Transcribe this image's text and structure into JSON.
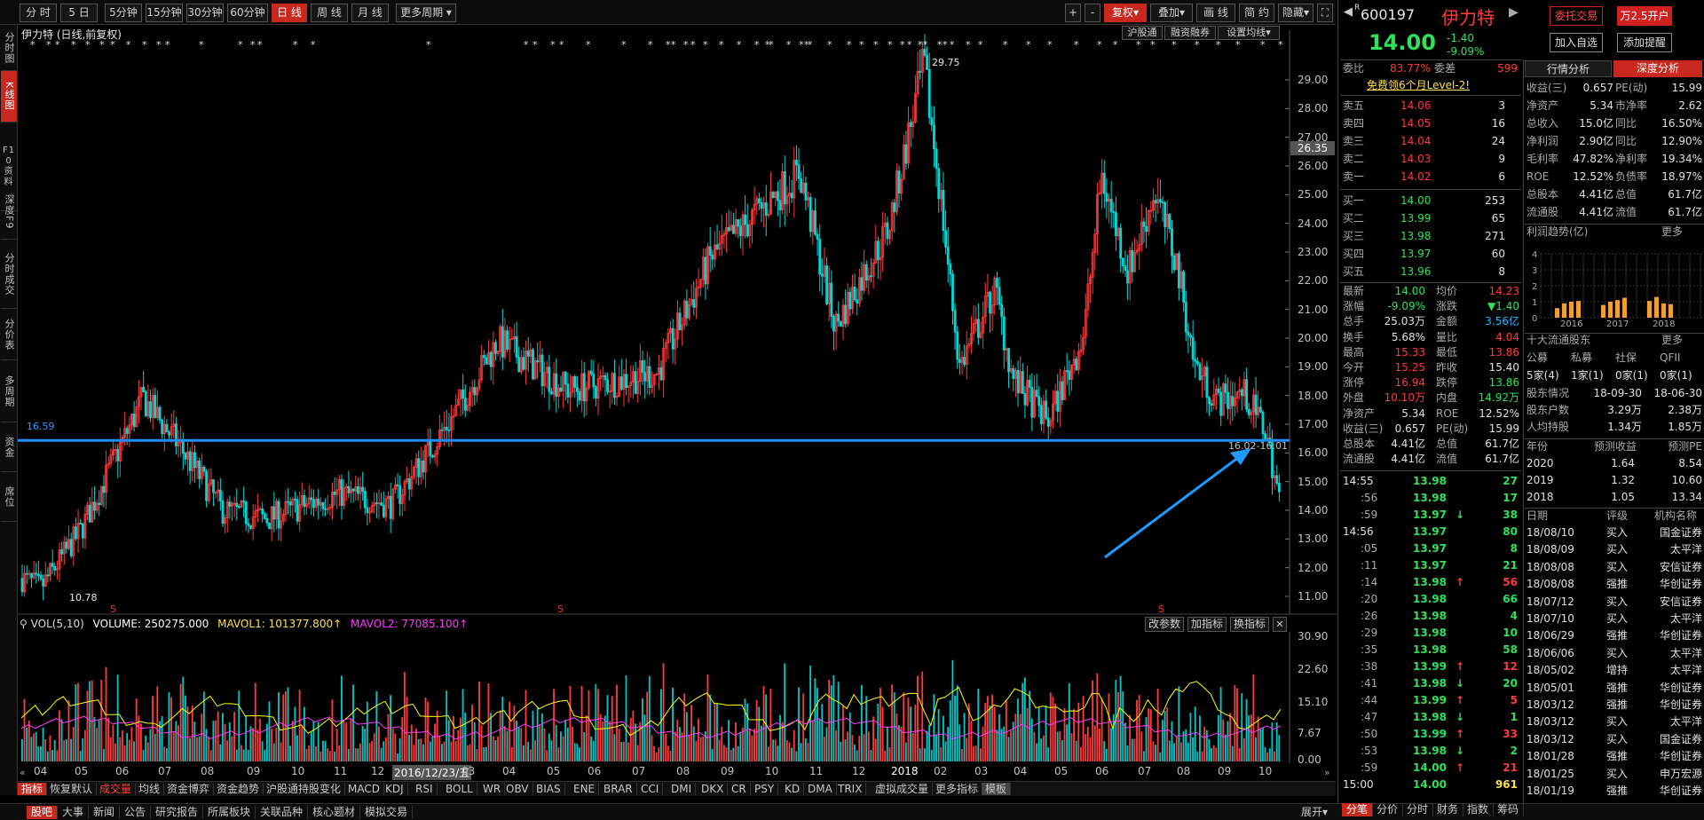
{
  "toolbar": {
    "periods": [
      "分 时",
      "5 日",
      "5分钟",
      "15分钟",
      "30分钟",
      "60分钟",
      "日 线",
      "周 线",
      "月 线",
      "更多周期"
    ],
    "active_period": "日 线",
    "right": [
      "+",
      "-",
      "复权",
      "叠加",
      "画 线",
      "简 约",
      "隐藏"
    ],
    "fq_label": "复权"
  },
  "left_tabs": [
    "分时图",
    "K线图",
    "F10资料",
    "深度F9",
    "分时成交",
    "分价表",
    "多周期",
    "资金",
    "席位"
  ],
  "chart": {
    "caption": "伊力特 (日线,前复权)",
    "top_buttons": [
      "沪股通",
      "融资融券",
      "设置均线"
    ],
    "price_axis": [
      "29.00",
      "28.00",
      "27.00",
      "26.00",
      "25.00",
      "24.00",
      "23.00",
      "22.00",
      "21.00",
      "20.00",
      "19.00",
      "18.00",
      "17.00",
      "16.00",
      "15.00",
      "14.00",
      "13.00",
      "12.00",
      "11.00"
    ],
    "price_tag": "26.35",
    "hline_label": "16.59",
    "high_label": "29.75",
    "low_label": "10.78",
    "cross_label": "16.02-16.01",
    "s_marks": [
      "S",
      "S",
      "S"
    ]
  },
  "volume": {
    "vol_label": "VOL(5,10)",
    "volume_text": "VOLUME: 250275.000",
    "mavol1_text": "MAVOL1: 101377.800",
    "mavol2_text": "MAVOL2: 77085.100",
    "buttons": [
      "改参数",
      "加指标",
      "换指标"
    ],
    "axis": [
      "30.90",
      "22.60",
      "15.10",
      "7.67",
      "0.00"
    ]
  },
  "date_axis": [
    "04",
    "05",
    "06",
    "07",
    "08",
    "09",
    "10",
    "11",
    "12",
    "2016/12/23/五",
    "03",
    "04",
    "05",
    "06",
    "07",
    "08",
    "09",
    "10",
    "11",
    "12",
    "2018",
    "02",
    "03",
    "04",
    "05",
    "06",
    "07",
    "08",
    "09",
    "10"
  ],
  "indicator_tabs": [
    "指标",
    "恢复默认",
    "成交量",
    "均线",
    "资金博弈",
    "资金趋势",
    "沪股通持股变化",
    "MACD",
    "KDJ",
    "RSI",
    "BOLL",
    "WR",
    "OBV",
    "BIAS",
    "ENE",
    "BRAR",
    "CCI",
    "DMI",
    "DKX",
    "CR",
    "PSY",
    "KD",
    "DMA",
    "TRIX",
    "虚拟成交量",
    "更多指标",
    "模板"
  ],
  "bottom_tabs": [
    "股吧",
    "大事",
    "新闻",
    "公告",
    "研究报告",
    "所属板块",
    "关联品种",
    "核心题材",
    "模拟交易"
  ],
  "expand_label": "展开",
  "right_bottom_tabs": [
    "分笔",
    "分价",
    "分时",
    "财务",
    "指数",
    "筹码"
  ],
  "stock": {
    "r_mark": "R",
    "code": "600197",
    "name": "伊力特",
    "price": "14.00",
    "change": "-1.40",
    "change_pct": "-9.09%",
    "buttons": [
      "委托交易",
      "万2.5开户",
      "加入自选",
      "添加提醒"
    ]
  },
  "order": {
    "wb_label": "委比",
    "wb_value": "83.77%",
    "wc_label": "委差",
    "wc_value": "599",
    "promo": "免费领6个月Level-2!",
    "sells": [
      [
        "卖五",
        "14.06",
        "3"
      ],
      [
        "卖四",
        "14.05",
        "16"
      ],
      [
        "卖三",
        "14.04",
        "24"
      ],
      [
        "卖二",
        "14.03",
        "9"
      ],
      [
        "卖一",
        "14.02",
        "6"
      ]
    ],
    "buys": [
      [
        "买一",
        "14.00",
        "253"
      ],
      [
        "买二",
        "13.99",
        "65"
      ],
      [
        "买三",
        "13.98",
        "271"
      ],
      [
        "买四",
        "13.97",
        "60"
      ],
      [
        "买五",
        "13.96",
        "8"
      ]
    ]
  },
  "stats": [
    [
      "最新",
      "14.00",
      "均价",
      "14.23"
    ],
    [
      "涨幅",
      "-9.09%",
      "涨跌",
      "▼1.40"
    ],
    [
      "总手",
      "25.03万",
      "金额",
      "3.56亿"
    ],
    [
      "换手",
      "5.68%",
      "量比",
      "4.04"
    ],
    [
      "最高",
      "15.33",
      "最低",
      "13.86"
    ],
    [
      "今开",
      "15.25",
      "昨收",
      "15.40"
    ],
    [
      "涨停",
      "16.94",
      "跌停",
      "13.86"
    ],
    [
      "外盘",
      "10.10万",
      "内盘",
      "14.92万"
    ],
    [
      "净资产",
      "5.34",
      "ROE",
      "12.52%"
    ],
    [
      "收益(三)",
      "0.657",
      "PE(动)",
      "15.99"
    ],
    [
      "总股本",
      "4.41亿",
      "总值",
      "61.7亿"
    ],
    [
      "流通股",
      "4.41亿",
      "流值",
      "61.7亿"
    ]
  ],
  "ticks": [
    [
      "14:55",
      "13.98",
      "27",
      ""
    ],
    [
      ":56",
      "13.98",
      "17",
      ""
    ],
    [
      ":59",
      "13.97",
      "38",
      "↓"
    ],
    [
      "14:56",
      "13.97",
      "80",
      ""
    ],
    [
      ":05",
      "13.97",
      "8",
      ""
    ],
    [
      ":11",
      "13.97",
      "21",
      ""
    ],
    [
      ":14",
      "13.98",
      "56",
      "↑"
    ],
    [
      ":20",
      "13.98",
      "66",
      ""
    ],
    [
      ":26",
      "13.98",
      "4",
      ""
    ],
    [
      ":29",
      "13.98",
      "10",
      ""
    ],
    [
      ":35",
      "13.98",
      "58",
      ""
    ],
    [
      ":38",
      "13.99",
      "12",
      "↑"
    ],
    [
      ":41",
      "13.98",
      "20",
      "↓"
    ],
    [
      ":44",
      "13.99",
      "5",
      "↑"
    ],
    [
      ":47",
      "13.98",
      "1",
      "↓"
    ],
    [
      ":50",
      "13.99",
      "33",
      "↑"
    ],
    [
      ":53",
      "13.98",
      "2",
      "↓"
    ],
    [
      ":59",
      "14.00",
      "21",
      "↑"
    ],
    [
      "15:00",
      "14.00",
      "961",
      ""
    ]
  ],
  "deep": {
    "tabs": [
      "行情分析",
      "深度分析"
    ],
    "fin": [
      [
        "收益(三)",
        "0.657",
        "PE(动)",
        "15.99"
      ],
      [
        "净资产",
        "5.34",
        "市净率",
        "2.62"
      ],
      [
        "总收入",
        "15.0亿",
        "同比",
        "16.50%"
      ],
      [
        "净利润",
        "2.90亿",
        "同比",
        "12.90%"
      ],
      [
        "毛利率",
        "47.82%",
        "净利率",
        "19.34%"
      ],
      [
        "ROE",
        "12.52%",
        "负债率",
        "18.97%"
      ],
      [
        "总股本",
        "4.41亿",
        "总值",
        "61.7亿"
      ],
      [
        "流通股",
        "4.41亿",
        "流值",
        "61.7亿"
      ]
    ],
    "profit_title": "利润趋势(亿)",
    "more": "更多",
    "profit_axis": [
      "4",
      "3",
      "2",
      "1",
      "0"
    ],
    "profit_years": [
      "2016",
      "2017",
      "2018"
    ],
    "profit_bars": [
      [
        0.6,
        0.9,
        1.0,
        1.05
      ],
      [
        0.8,
        1.0,
        1.1,
        1.25
      ],
      [
        1.05,
        1.3,
        0.9,
        0.85
      ]
    ],
    "holders_title": "十大流通股东",
    "holder_cols": [
      "公募",
      "私募",
      "社保",
      "QFII"
    ],
    "holder_vals": [
      "5家(4)",
      "1家(1)",
      "0家(1)",
      "0家(1)"
    ],
    "holder_rows": [
      [
        "股东情况",
        "18-09-30",
        "18-06-30"
      ],
      [
        "股东户数",
        "3.29万",
        "2.38万"
      ],
      [
        "人均持股",
        "1.34万",
        "1.85万"
      ]
    ],
    "forecast_cols": [
      "年份",
      "预测收益",
      "预测PE"
    ],
    "forecast": [
      [
        "2020",
        "1.64",
        "8.54"
      ],
      [
        "2019",
        "1.32",
        "10.60"
      ],
      [
        "2018",
        "1.05",
        "13.34"
      ]
    ],
    "rating_cols": [
      "日期",
      "评级",
      "机构名称"
    ],
    "ratings": [
      [
        "18/08/10",
        "买入",
        "国金证券"
      ],
      [
        "18/08/09",
        "买入",
        "太平洋"
      ],
      [
        "18/08/08",
        "买入",
        "安信证券"
      ],
      [
        "18/08/08",
        "强推",
        "华创证券"
      ],
      [
        "18/07/12",
        "买入",
        "安信证券"
      ],
      [
        "18/07/10",
        "买入",
        "太平洋"
      ],
      [
        "18/06/29",
        "强推",
        "华创证券"
      ],
      [
        "18/06/06",
        "买入",
        "太平洋"
      ],
      [
        "18/05/02",
        "增持",
        "太平洋"
      ],
      [
        "18/05/01",
        "强推",
        "华创证券"
      ],
      [
        "18/03/12",
        "强推",
        "华创证券"
      ],
      [
        "18/03/12",
        "买入",
        "太平洋"
      ],
      [
        "18/03/12",
        "买入",
        "国金证券"
      ],
      [
        "18/01/28",
        "强推",
        "华创证券"
      ],
      [
        "18/01/25",
        "买入",
        "申万宏源"
      ],
      [
        "18/01/19",
        "强推",
        "华创证券"
      ]
    ]
  },
  "colors": {
    "up": "#ff3b3b",
    "down": "#2fe25a",
    "accent": "#c8281e",
    "hline": "#1e8fff",
    "ma1": "#ffff00",
    "ma2": "#ff3bff"
  }
}
